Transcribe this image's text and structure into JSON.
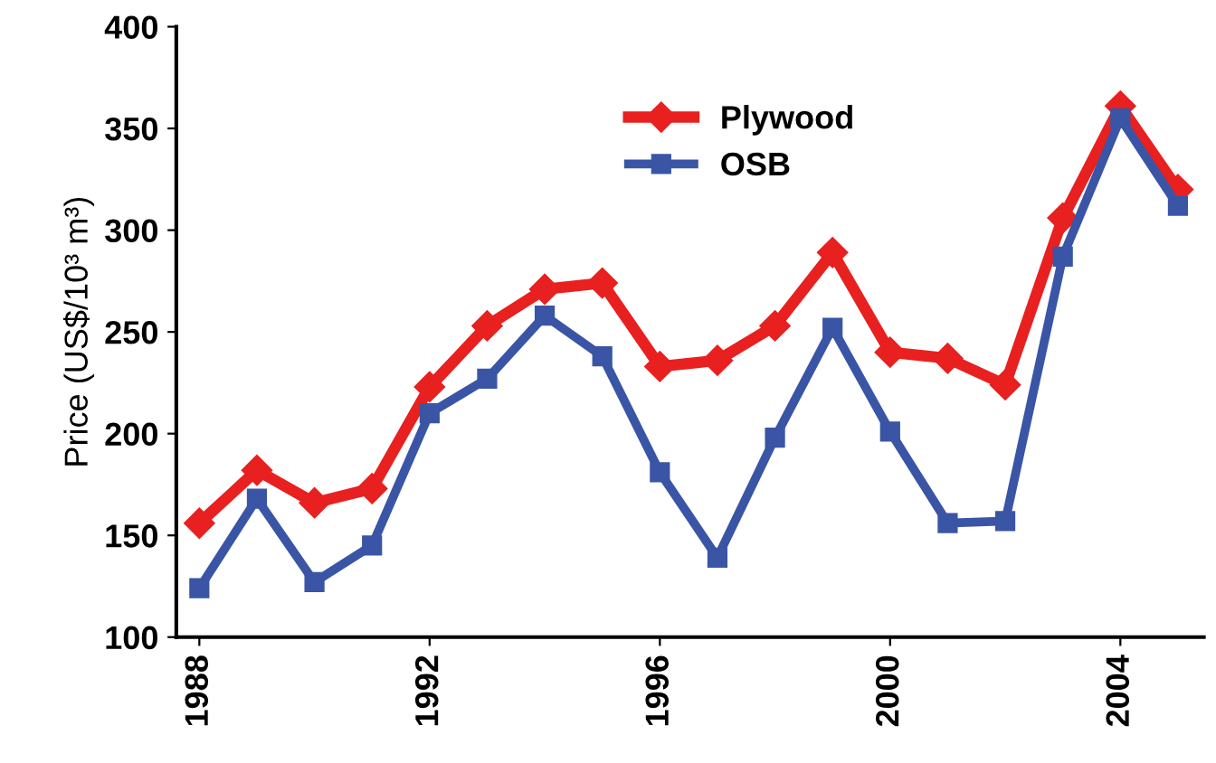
{
  "chart_data": {
    "type": "line",
    "ylabel": "Price (US$/10³ m³)",
    "x": [
      1988,
      1989,
      1990,
      1991,
      1992,
      1993,
      1994,
      1995,
      1996,
      1997,
      1998,
      1999,
      2000,
      2001,
      2002,
      2003,
      2004,
      2005
    ],
    "series": [
      {
        "name": "Plywood",
        "color": "#e8201f",
        "marker": "diamond",
        "values": [
          156,
          182,
          166,
          173,
          223,
          253,
          271,
          274,
          233,
          236,
          253,
          289,
          240,
          237,
          224,
          306,
          361,
          320
        ]
      },
      {
        "name": "OSB",
        "color": "#3a55a5",
        "marker": "square",
        "values": [
          124,
          168,
          127,
          145,
          210,
          227,
          258,
          238,
          181,
          139,
          198,
          252,
          201,
          156,
          157,
          287,
          355,
          312
        ]
      }
    ],
    "xlim": [
      1987.6,
      2005.45
    ],
    "xticks": [
      1988,
      1992,
      1996,
      2000,
      2004
    ],
    "ylim": [
      100,
      400
    ],
    "yticks": [
      100,
      150,
      200,
      250,
      300,
      350,
      400
    ],
    "grid": false,
    "legend": "top",
    "line_style": "solid"
  }
}
